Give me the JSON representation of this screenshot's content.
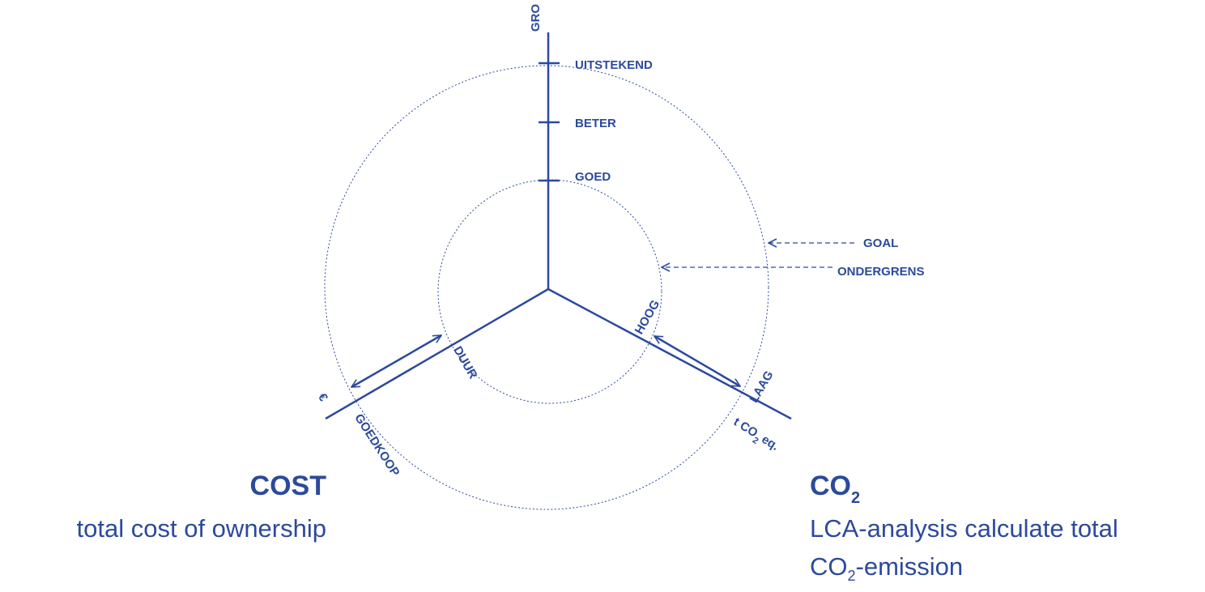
{
  "axes": {
    "vertical": {
      "label": "GRO",
      "ticks": [
        "UITSTEKEND",
        "BETER",
        "GOED"
      ]
    },
    "cost": {
      "unit": "€",
      "inner": "DUUR",
      "outer": "GOEDKOOP"
    },
    "co2": {
      "unit_prefix": "t CO",
      "unit_sub": "2",
      "unit_suffix": "eq.",
      "inner": "HOOG",
      "outer": "LAAG"
    }
  },
  "legend": {
    "outer": "GOAL",
    "inner": "ONDERGRENS"
  },
  "cost_block": {
    "title": "COST",
    "text": "total cost of ownership"
  },
  "co2_block": {
    "title": "CO",
    "title_sub": "2",
    "line1": "LCA-analysis  calculate total",
    "line2_prefix": "CO",
    "line2_sub": "2",
    "line2_suffix": "-emission"
  }
}
